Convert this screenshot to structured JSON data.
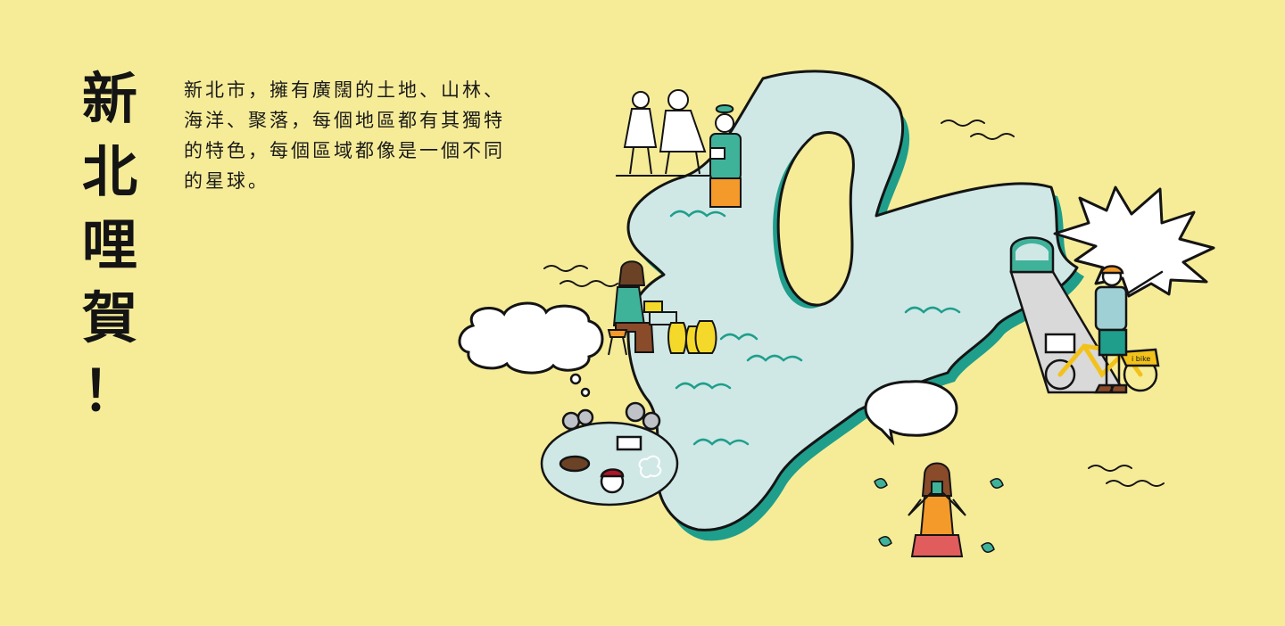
{
  "title": {
    "chars": [
      "新",
      "北",
      "哩",
      "賀",
      "！"
    ]
  },
  "intro": {
    "text": "新北市，擁有廣闊的土地、山林、海洋、聚落，每個地區都有其獨特的特色，每個區域都像是一個不同的星球。"
  },
  "bike": {
    "logo_text": "i bike"
  },
  "colors": {
    "background": "#f6ec98",
    "map_fill": "#cfe8e6",
    "map_shadow": "#1f9e8c",
    "outline": "#141414",
    "bubble": "#ffffff",
    "person_shirt_green": "#3fb29a",
    "person_pants_orange": "#f39a2b",
    "vase_yellow": "#f4d92a",
    "bike_yellow": "#f2c21a"
  }
}
